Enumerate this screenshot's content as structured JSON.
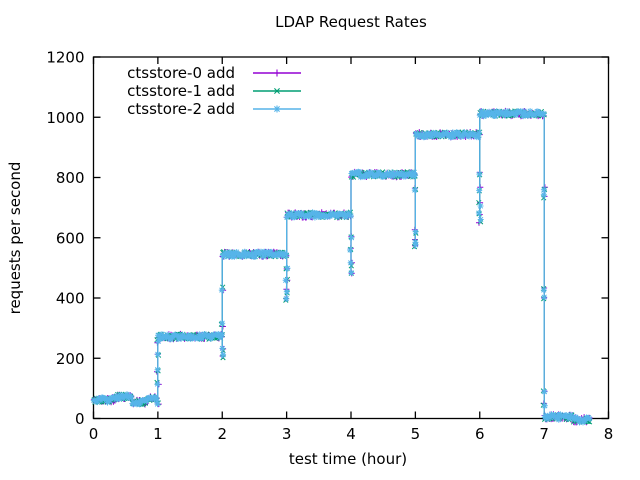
{
  "window": {
    "title": "LDAP Request Rates"
  },
  "chart_data": {
    "type": "line",
    "title": "LDAP Request Rates",
    "xlabel": "test time (hour)",
    "ylabel": "requests per second",
    "xlim": [
      0,
      8
    ],
    "ylim": [
      0,
      1200
    ],
    "xticks": [
      0,
      1,
      2,
      3,
      4,
      5,
      6,
      7,
      8
    ],
    "yticks": [
      0,
      200,
      400,
      600,
      800,
      1000,
      1200
    ],
    "grid": false,
    "legend_position": "top-left-inside",
    "background_color": "#ffffff",
    "axis_color": "#000000",
    "series": [
      {
        "name": "ctsstore-0 add",
        "color": "#9400d3",
        "marker": "plus"
      },
      {
        "name": "ctsstore-1 add",
        "color": "#009e73",
        "marker": "cross"
      },
      {
        "name": "ctsstore-2 add",
        "color": "#56b4e9",
        "marker": "star"
      }
    ],
    "series_note": "all three series overlap almost exactly; staircase load profile",
    "steps": [
      {
        "from": 0,
        "to": 0.35,
        "rate": 62
      },
      {
        "from": 0.35,
        "to": 0.6,
        "rate": 73
      },
      {
        "from": 0.6,
        "to": 0.82,
        "rate": 54
      },
      {
        "from": 0.82,
        "to": 1,
        "rate": 65
      },
      {
        "from": 1,
        "to": 2,
        "rate": 272
      },
      {
        "from": 2,
        "to": 3,
        "rate": 545
      },
      {
        "from": 3,
        "to": 4,
        "rate": 676
      },
      {
        "from": 4,
        "to": 5,
        "rate": 810
      },
      {
        "from": 5,
        "to": 6,
        "rate": 942
      },
      {
        "from": 6,
        "to": 7,
        "rate": 1012
      },
      {
        "from": 7,
        "to": 7.45,
        "rate": 5
      },
      {
        "from": 7.45,
        "to": 7.72,
        "rate": -4
      }
    ],
    "transitions": [
      {
        "t": 1,
        "dip": 45,
        "markers": [
          48,
          120,
          160,
          210,
          255
        ]
      },
      {
        "t": 2,
        "dip": 200,
        "markers": [
          205,
          232,
          312,
          430
        ]
      },
      {
        "t": 3,
        "dip": 388,
        "markers": [
          395,
          422,
          455,
          492
        ]
      },
      {
        "t": 4,
        "dip": 480,
        "markers": [
          488,
          512,
          562,
          600
        ]
      },
      {
        "t": 5,
        "dip": 563,
        "markers": [
          570,
          592,
          622,
          758
        ]
      },
      {
        "t": 6,
        "dip": 648,
        "markers": [
          655,
          682,
          712,
          762,
          812
        ]
      },
      {
        "t": 7,
        "dip": 0,
        "markers": [
          765,
          738,
          432,
          398,
          95,
          48
        ]
      }
    ]
  }
}
